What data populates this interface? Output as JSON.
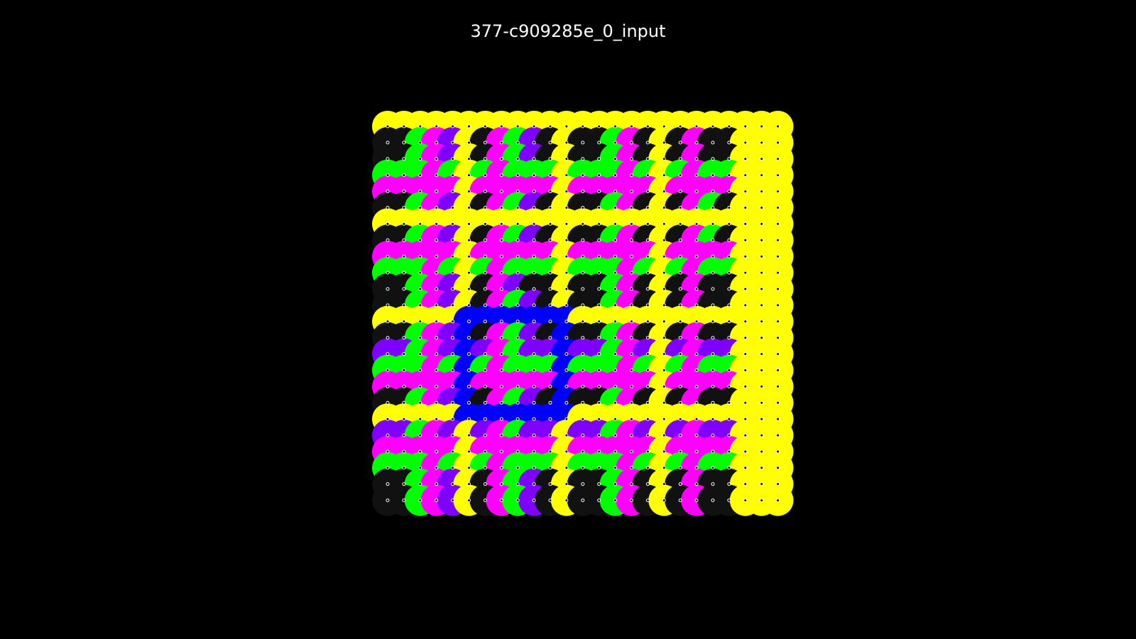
{
  "title": "377-c909285e_0_input",
  "palette": {
    "Y": "#ffff00",
    "K": "#111111",
    "G": "#00ff00",
    "M": "#ff00ff",
    "P": "#8000ff",
    "B": "#0000ff"
  },
  "grid": [
    "YYYYYYYYYYYYYYYYYYYYYYYYY",
    "KKGMPYKMGPKYKKGMKYKMKKY",
    "KKGMPYKMGPKYKKGMKYKMKKY",
    "GGGMGYGMGGGYGGGMGYGMGGY",
    "MMMMMYMMMMMYMMMMMYMMMMY",
    "KKGMPYKMGPKYKKGMKYKMGKY",
    "YYYYYYYYYYYYYYYYYYYYYYY",
    "KKGMPYKMGPKYKKGMKYKMGKY",
    "MMMMMYMMMMMYMMMMMYMMMMY",
    "GGGMGYGMGGGYGGGMGYGMGGY",
    "KKGMPYKMPKKYKKGMKYKMKKY",
    "KKGMPYKMGPKYKKGMKYKMKKY",
    "YYYYYBBBBBBBYYYYYYYYYYY",
    "KKGMPBKMGPKBKKGMKYKMKKY",
    "PPGMPBPMGPPBPPGMPYPMPPY",
    "GGGMGBGMGGGBGGGMGYGMGGY",
    "MMMMMBMMMMMBMMMMMYMMMMY",
    "KKGMPBKMGPKBKKGMKYKMKKY",
    "YYYYYBBBBBBBYYYYYYYYYYY",
    "PPGMPYPMGPPYPPGMPYPMPPY",
    "MMMMMYMMMMMYMMMMMYMMMMY",
    "GGGMGYGMGGGYGGGMGYGMGGY",
    "KKGMPYKMGPKYKKGMKYKMKKY",
    "KKGMPYKMGPKYKKGMKYKMKKY"
  ]
}
